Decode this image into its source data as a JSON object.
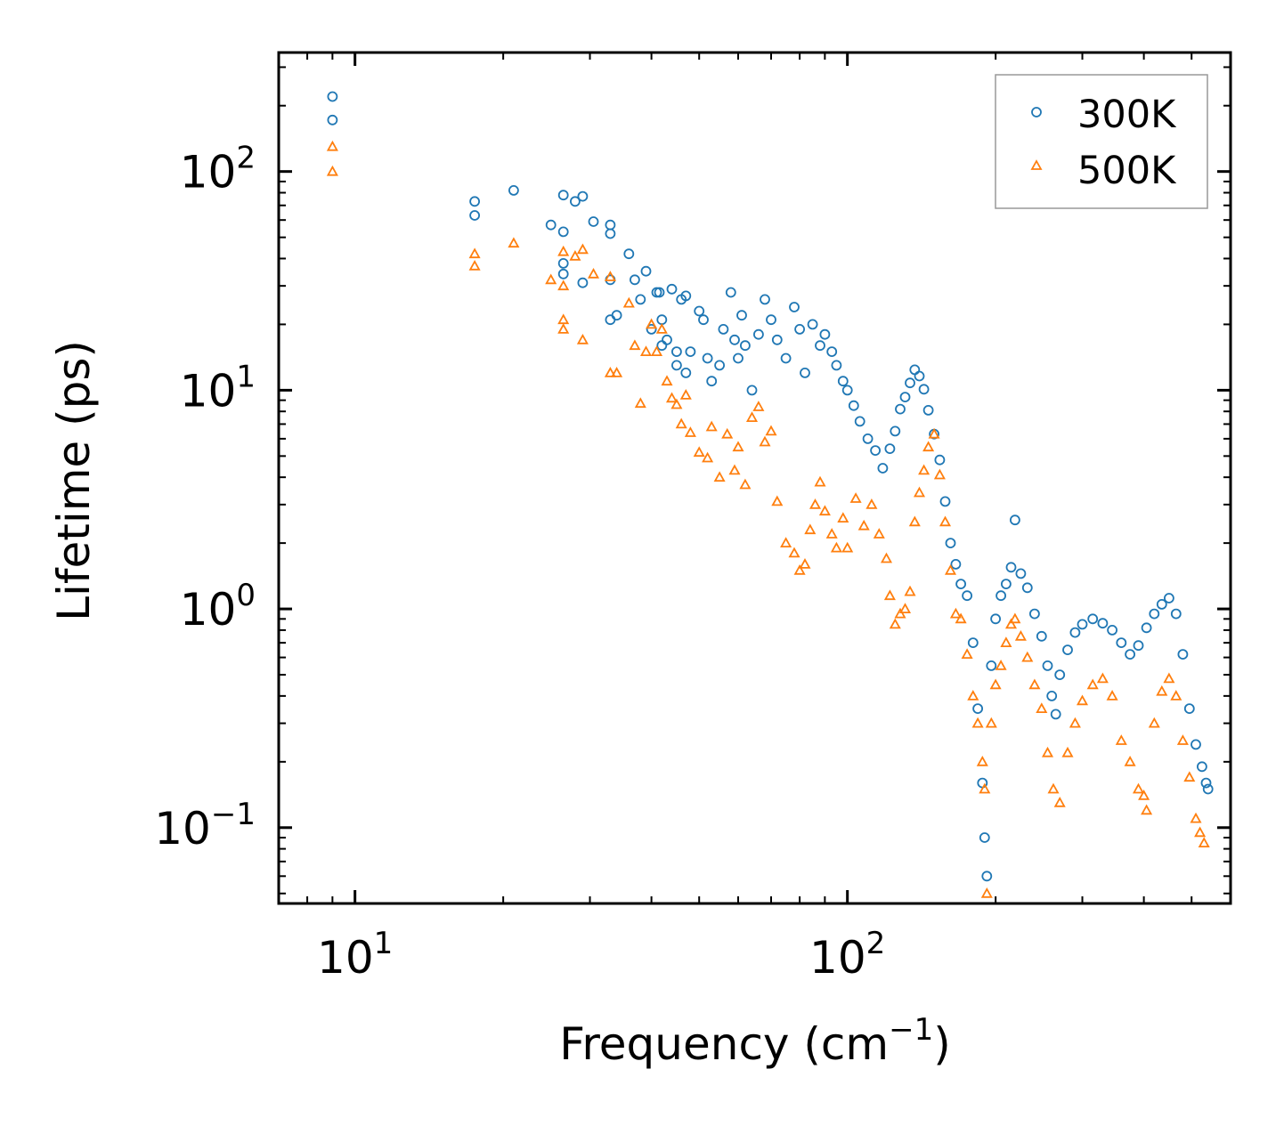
{
  "chart_data": {
    "type": "scatter",
    "x_scale": "log",
    "y_scale": "log",
    "xlabel": "Frequency (cm",
    "xlabel_sup": "−1",
    "xlabel_close": ")",
    "ylabel": "Lifetime (ps)",
    "xlim": [
      7,
      600
    ],
    "ylim": [
      0.045,
      350
    ],
    "x_ticks": [
      {
        "value": 10,
        "base": "10",
        "exp": "1"
      },
      {
        "value": 100,
        "base": "10",
        "exp": "2"
      }
    ],
    "y_ticks": [
      {
        "value": 0.1,
        "base": "10",
        "exp": "−1"
      },
      {
        "value": 1,
        "base": "10",
        "exp": "0"
      },
      {
        "value": 10,
        "base": "10",
        "exp": "1"
      },
      {
        "value": 100,
        "base": "10",
        "exp": "2"
      }
    ],
    "legend_position": "top-right",
    "series": [
      {
        "name": "300K",
        "marker": "circle",
        "color": "#1f77b4",
        "points": [
          [
            9,
            220
          ],
          [
            9,
            172
          ],
          [
            17.5,
            73
          ],
          [
            17.5,
            63
          ],
          [
            21,
            82
          ],
          [
            25,
            57
          ],
          [
            26.5,
            53
          ],
          [
            26.5,
            78
          ],
          [
            28,
            73
          ],
          [
            29,
            77
          ],
          [
            30.5,
            59
          ],
          [
            26.5,
            38
          ],
          [
            26.5,
            34
          ],
          [
            29,
            31
          ],
          [
            33,
            57
          ],
          [
            33,
            52
          ],
          [
            33,
            32
          ],
          [
            33,
            21
          ],
          [
            34,
            22
          ],
          [
            36,
            42
          ],
          [
            37,
            32
          ],
          [
            38,
            26
          ],
          [
            39,
            35
          ],
          [
            40,
            19
          ],
          [
            41,
            28
          ],
          [
            41.5,
            28
          ],
          [
            42,
            21
          ],
          [
            42,
            16
          ],
          [
            43,
            17
          ],
          [
            44,
            29
          ],
          [
            45,
            15
          ],
          [
            45,
            13
          ],
          [
            46,
            26
          ],
          [
            47,
            27
          ],
          [
            47,
            12
          ],
          [
            48,
            15
          ],
          [
            50,
            23
          ],
          [
            51,
            21
          ],
          [
            52,
            14
          ],
          [
            53,
            11
          ],
          [
            55,
            13
          ],
          [
            56,
            19
          ],
          [
            58,
            28
          ],
          [
            59,
            17
          ],
          [
            60,
            14
          ],
          [
            61,
            22
          ],
          [
            62,
            16
          ],
          [
            64,
            10
          ],
          [
            66,
            18
          ],
          [
            68,
            26
          ],
          [
            70,
            21
          ],
          [
            72,
            17
          ],
          [
            75,
            14
          ],
          [
            78,
            24
          ],
          [
            80,
            19
          ],
          [
            82,
            12
          ],
          [
            85,
            20
          ],
          [
            88,
            16
          ],
          [
            90,
            18
          ],
          [
            93,
            15
          ],
          [
            95,
            13
          ],
          [
            98,
            11
          ],
          [
            100,
            10
          ],
          [
            103,
            8.5
          ],
          [
            106,
            7.2
          ],
          [
            110,
            6.0
          ],
          [
            114,
            5.3
          ],
          [
            118,
            4.4
          ],
          [
            122,
            5.4
          ],
          [
            125,
            6.5
          ],
          [
            128,
            8.2
          ],
          [
            131,
            9.3
          ],
          [
            134,
            10.8
          ],
          [
            137,
            12.4
          ],
          [
            140,
            11.6
          ],
          [
            143,
            10.1
          ],
          [
            146,
            8.1
          ],
          [
            150,
            6.3
          ],
          [
            154,
            4.8
          ],
          [
            158,
            3.1
          ],
          [
            162,
            2.0
          ],
          [
            166,
            1.6
          ],
          [
            170,
            1.3
          ],
          [
            175,
            1.15
          ],
          [
            180,
            0.7
          ],
          [
            184,
            0.35
          ],
          [
            188,
            0.16
          ],
          [
            190,
            0.09
          ],
          [
            192,
            0.06
          ],
          [
            196,
            0.55
          ],
          [
            200,
            0.9
          ],
          [
            205,
            1.15
          ],
          [
            210,
            1.3
          ],
          [
            215,
            1.55
          ],
          [
            219,
            2.55
          ],
          [
            225,
            1.45
          ],
          [
            232,
            1.25
          ],
          [
            240,
            0.95
          ],
          [
            248,
            0.75
          ],
          [
            255,
            0.55
          ],
          [
            260,
            0.4
          ],
          [
            265,
            0.33
          ],
          [
            270,
            0.5
          ],
          [
            280,
            0.65
          ],
          [
            290,
            0.78
          ],
          [
            300,
            0.85
          ],
          [
            315,
            0.9
          ],
          [
            330,
            0.86
          ],
          [
            345,
            0.8
          ],
          [
            360,
            0.7
          ],
          [
            375,
            0.62
          ],
          [
            390,
            0.68
          ],
          [
            405,
            0.82
          ],
          [
            420,
            0.95
          ],
          [
            435,
            1.05
          ],
          [
            450,
            1.12
          ],
          [
            465,
            0.95
          ],
          [
            480,
            0.62
          ],
          [
            495,
            0.35
          ],
          [
            510,
            0.24
          ],
          [
            525,
            0.19
          ],
          [
            535,
            0.16
          ],
          [
            540,
            0.15
          ]
        ]
      },
      {
        "name": "500K",
        "marker": "triangle",
        "color": "#ff7f0e",
        "points": [
          [
            9,
            130
          ],
          [
            9,
            100
          ],
          [
            17.5,
            42
          ],
          [
            17.5,
            37
          ],
          [
            21,
            47
          ],
          [
            25,
            32
          ],
          [
            26.5,
            43
          ],
          [
            26.5,
            30
          ],
          [
            28,
            41
          ],
          [
            29,
            44
          ],
          [
            30.5,
            34
          ],
          [
            26.5,
            21
          ],
          [
            26.5,
            19
          ],
          [
            29,
            17
          ],
          [
            33,
            33
          ],
          [
            33,
            12
          ],
          [
            34,
            12
          ],
          [
            36,
            25
          ],
          [
            37,
            16
          ],
          [
            38,
            8.7
          ],
          [
            39,
            15
          ],
          [
            40,
            20
          ],
          [
            41,
            15
          ],
          [
            42,
            19
          ],
          [
            43,
            11
          ],
          [
            44,
            9.2
          ],
          [
            45,
            8.6
          ],
          [
            46,
            7.0
          ],
          [
            47,
            9.5
          ],
          [
            48,
            6.4
          ],
          [
            50,
            5.2
          ],
          [
            52,
            4.9
          ],
          [
            53,
            6.8
          ],
          [
            55,
            4.0
          ],
          [
            57,
            6.3
          ],
          [
            59,
            4.3
          ],
          [
            60,
            5.5
          ],
          [
            62,
            3.7
          ],
          [
            64,
            7.5
          ],
          [
            66,
            8.4
          ],
          [
            68,
            5.8
          ],
          [
            70,
            6.5
          ],
          [
            72,
            3.1
          ],
          [
            75,
            2.0
          ],
          [
            78,
            1.8
          ],
          [
            80,
            1.5
          ],
          [
            82,
            1.6
          ],
          [
            84,
            2.3
          ],
          [
            86,
            3.0
          ],
          [
            88,
            3.8
          ],
          [
            90,
            2.8
          ],
          [
            93,
            2.2
          ],
          [
            95,
            1.9
          ],
          [
            98,
            2.6
          ],
          [
            100,
            1.9
          ],
          [
            104,
            3.2
          ],
          [
            108,
            2.4
          ],
          [
            112,
            3.0
          ],
          [
            116,
            2.2
          ],
          [
            120,
            1.7
          ],
          [
            122,
            1.15
          ],
          [
            125,
            0.85
          ],
          [
            128,
            0.95
          ],
          [
            131,
            1.0
          ],
          [
            134,
            1.2
          ],
          [
            137,
            2.5
          ],
          [
            140,
            3.4
          ],
          [
            143,
            4.3
          ],
          [
            146,
            5.5
          ],
          [
            150,
            6.3
          ],
          [
            154,
            4.1
          ],
          [
            158,
            2.5
          ],
          [
            162,
            1.5
          ],
          [
            166,
            0.95
          ],
          [
            170,
            0.9
          ],
          [
            175,
            0.62
          ],
          [
            180,
            0.4
          ],
          [
            184,
            0.3
          ],
          [
            188,
            0.2
          ],
          [
            190,
            0.15
          ],
          [
            192,
            0.05
          ],
          [
            196,
            0.3
          ],
          [
            200,
            0.45
          ],
          [
            205,
            0.55
          ],
          [
            210,
            0.7
          ],
          [
            215,
            0.85
          ],
          [
            219,
            0.9
          ],
          [
            225,
            0.75
          ],
          [
            232,
            0.6
          ],
          [
            240,
            0.45
          ],
          [
            248,
            0.35
          ],
          [
            255,
            0.22
          ],
          [
            262,
            0.15
          ],
          [
            270,
            0.13
          ],
          [
            280,
            0.22
          ],
          [
            290,
            0.3
          ],
          [
            300,
            0.38
          ],
          [
            315,
            0.45
          ],
          [
            330,
            0.48
          ],
          [
            345,
            0.4
          ],
          [
            360,
            0.25
          ],
          [
            375,
            0.2
          ],
          [
            390,
            0.15
          ],
          [
            400,
            0.14
          ],
          [
            405,
            0.12
          ],
          [
            420,
            0.3
          ],
          [
            435,
            0.42
          ],
          [
            450,
            0.48
          ],
          [
            465,
            0.4
          ],
          [
            480,
            0.25
          ],
          [
            495,
            0.17
          ],
          [
            510,
            0.11
          ],
          [
            520,
            0.095
          ],
          [
            530,
            0.085
          ]
        ]
      }
    ]
  }
}
